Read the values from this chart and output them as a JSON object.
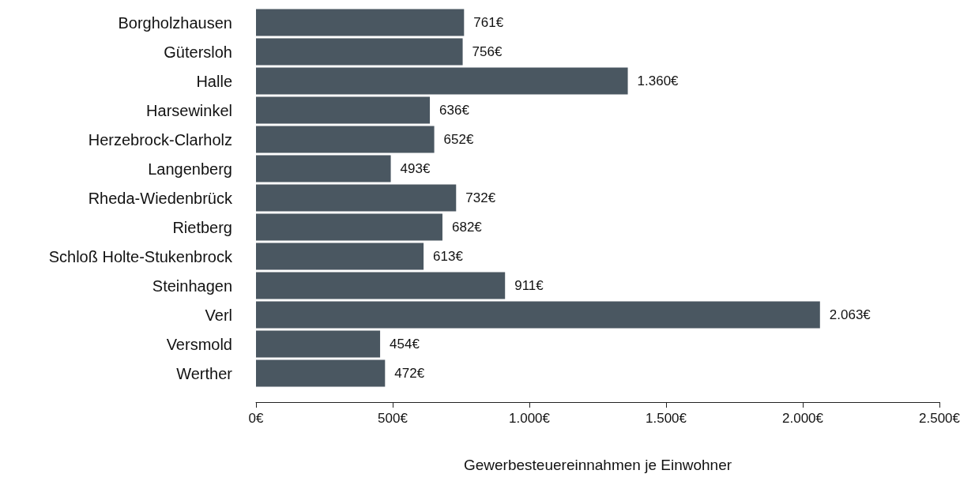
{
  "chart_data": {
    "type": "bar",
    "orientation": "horizontal",
    "xlabel": "Gewerbesteuereinnahmen je Einwohner",
    "categories": [
      "Borgholzhausen",
      "Gütersloh",
      "Halle",
      "Harsewinkel",
      "Herzebrock-Clarholz",
      "Langenberg",
      "Rheda-Wiedenbrück",
      "Rietberg",
      "Schloß Holte-Stukenbrock",
      "Steinhagen",
      "Verl",
      "Versmold",
      "Werther"
    ],
    "values": [
      761,
      756,
      1360,
      636,
      652,
      493,
      732,
      682,
      613,
      911,
      2063,
      454,
      472
    ],
    "value_labels": [
      "761€",
      "756€",
      "1.360€",
      "636€",
      "652€",
      "493€",
      "732€",
      "682€",
      "613€",
      "911€",
      "2.063€",
      "454€",
      "472€"
    ],
    "color": "#4a5761",
    "xlim": [
      0,
      2500
    ],
    "xticks": [
      {
        "value": 0,
        "label": "0€"
      },
      {
        "value": 500,
        "label": "500€"
      },
      {
        "value": 1000,
        "label": "1.000€"
      },
      {
        "value": 1500,
        "label": "1.500€"
      },
      {
        "value": 2000,
        "label": "2.000€"
      },
      {
        "value": 2500,
        "label": "2.500€"
      }
    ],
    "grid": false
  }
}
